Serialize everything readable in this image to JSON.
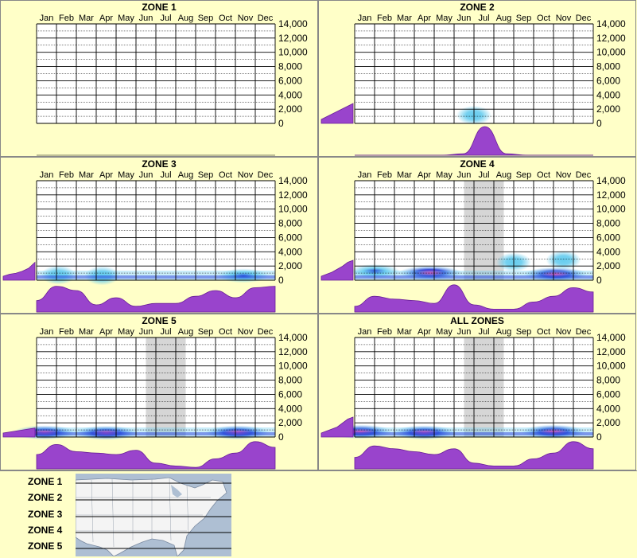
{
  "months": [
    "Jan",
    "Feb",
    "Mar",
    "Apr",
    "May",
    "Jun",
    "Jul",
    "Aug",
    "Sep",
    "Oct",
    "Nov",
    "Dec"
  ],
  "y_ticks": [
    "14,000",
    "12,000",
    "10,000",
    "8,000",
    "6,000",
    "4,000",
    "2,000",
    "0"
  ],
  "colors": {
    "background": "#ffffc8",
    "profile": "#9944cc",
    "profile_stroke": "#6a1f99",
    "grid": "#000000",
    "shade": "#cccccc",
    "cool": "#1a2fd6",
    "mid": "#66ccee",
    "hot": "#ff1ea8"
  },
  "chart_data": [
    {
      "type": "heatmap",
      "title": "ZONE 1",
      "ylim": [
        0,
        14000
      ],
      "shaded_months": [],
      "monthly_profile": [],
      "elevation_profile": [],
      "hotspots": []
    },
    {
      "type": "heatmap",
      "title": "ZONE 2",
      "ylim": [
        0,
        14000
      ],
      "shaded_months": [],
      "monthly_profile": [
        0,
        0,
        0,
        0,
        0,
        0.05,
        1.0,
        0.05,
        0,
        0,
        0,
        0
      ],
      "elevation_profile": [
        0.2,
        0.3,
        0.4,
        0.5,
        0.6,
        0.7,
        0.8,
        0.9,
        1.0
      ],
      "hotspots": [
        {
          "month": 6.5,
          "elevation": 800,
          "intensity": "mid"
        }
      ]
    },
    {
      "type": "heatmap",
      "title": "ZONE 3",
      "ylim": [
        0,
        14000
      ],
      "shaded_months": [],
      "monthly_profile": [
        0.4,
        0.9,
        0.75,
        0.25,
        0.5,
        0.2,
        0.3,
        0.3,
        0.55,
        0.75,
        0.5,
        0.85,
        0.9
      ],
      "elevation_profile": [
        0.2,
        0.3,
        0.35,
        0.45,
        0.6,
        0.9
      ],
      "hotspots": [
        {
          "month": 1.6,
          "elevation": 400,
          "intensity": "mid"
        },
        {
          "month": 3.8,
          "elevation": 300,
          "intensity": "mid"
        },
        {
          "month": 10.9,
          "elevation": 300,
          "intensity": "cool"
        }
      ]
    },
    {
      "type": "heatmap",
      "title": "ZONE 4",
      "ylim": [
        0,
        14000
      ],
      "shaded_months": [
        6,
        8
      ],
      "monthly_profile": [
        0.2,
        0.55,
        0.45,
        0.4,
        0.3,
        0.95,
        0.25,
        0.1,
        0.1,
        0.35,
        0.55,
        0.85,
        0.7
      ],
      "elevation_profile": [
        0.2,
        0.3,
        0.4,
        0.55,
        0.7,
        0.9,
        1.0
      ],
      "hotspots": [
        {
          "month": 1.5,
          "elevation": 900,
          "intensity": "cool"
        },
        {
          "month": 4.3,
          "elevation": 700,
          "intensity": "hot"
        },
        {
          "month": 10.6,
          "elevation": 500,
          "intensity": "hot"
        },
        {
          "month": 8.5,
          "elevation": 2200,
          "intensity": "mid"
        },
        {
          "month": 11.0,
          "elevation": 2500,
          "intensity": "mid"
        }
      ]
    },
    {
      "type": "heatmap",
      "title": "ZONE 5",
      "ylim": [
        0,
        14000
      ],
      "shaded_months": [
        6,
        8
      ],
      "monthly_profile": [
        0.5,
        0.85,
        0.6,
        0.55,
        0.5,
        0.65,
        0.2,
        0.1,
        0.05,
        0.35,
        0.55,
        0.95,
        0.75
      ],
      "elevation_profile": [
        0.2,
        0.25,
        0.3,
        0.35,
        0.4,
        0.45
      ],
      "hotspots": [
        {
          "month": 0.9,
          "elevation": 300,
          "intensity": "hot"
        },
        {
          "month": 4.0,
          "elevation": 250,
          "intensity": "hot"
        },
        {
          "month": 10.6,
          "elevation": 300,
          "intensity": "hot"
        }
      ]
    },
    {
      "type": "heatmap",
      "title": "ALL ZONES",
      "ylim": [
        0,
        14000
      ],
      "shaded_months": [
        6,
        8
      ],
      "monthly_profile": [
        0.4,
        0.8,
        0.7,
        0.6,
        0.5,
        0.7,
        0.2,
        0.1,
        0.1,
        0.35,
        0.55,
        0.95,
        0.7
      ],
      "elevation_profile": [
        0.2,
        0.3,
        0.4,
        0.5,
        0.7,
        0.9,
        1.0
      ],
      "hotspots": [
        {
          "month": 0.8,
          "elevation": 400,
          "intensity": "hot"
        },
        {
          "month": 4.0,
          "elevation": 300,
          "intensity": "hot"
        },
        {
          "month": 10.5,
          "elevation": 400,
          "intensity": "hot"
        }
      ]
    }
  ],
  "legend": {
    "zones": [
      "ZONE 1",
      "ZONE 2",
      "ZONE 3",
      "ZONE 4",
      "ZONE 5"
    ]
  }
}
